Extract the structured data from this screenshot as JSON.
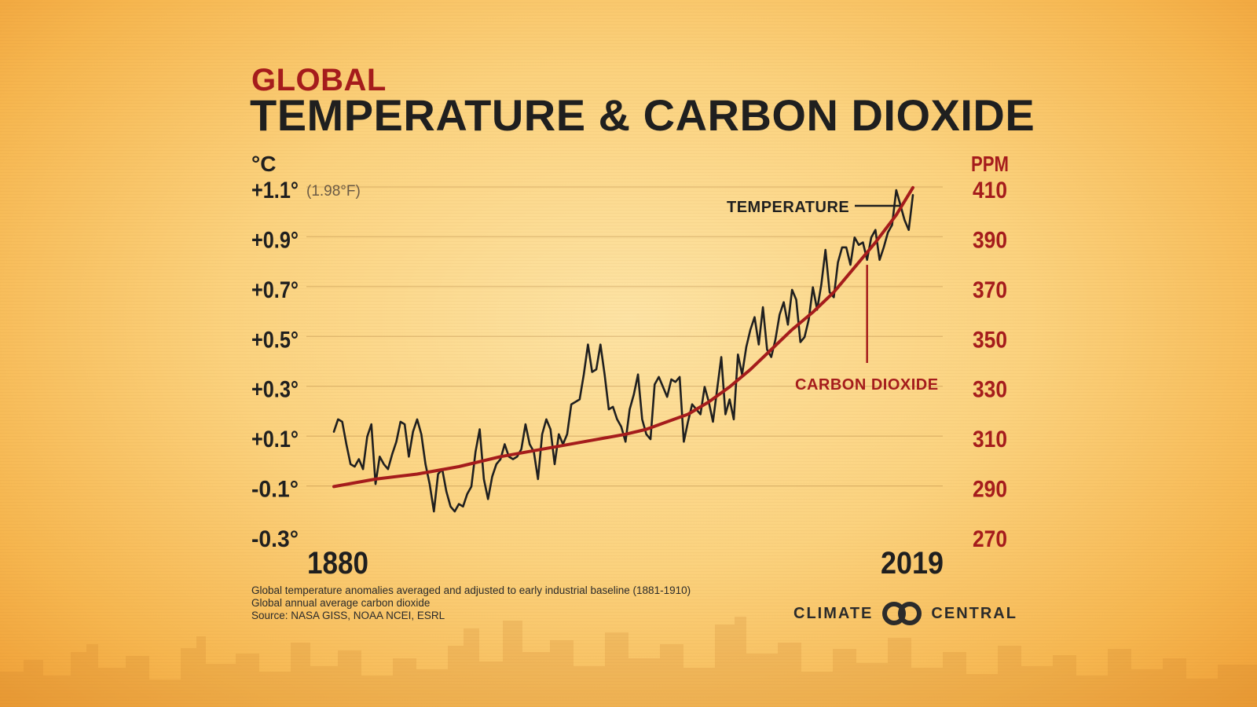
{
  "header": {
    "kicker": "GLOBAL",
    "title": "TEMPERATURE & CARBON DIOXIDE"
  },
  "chart_data": {
    "type": "line",
    "title": "GLOBAL TEMPERATURE & CARBON DIOXIDE",
    "x_range": [
      1880,
      2019
    ],
    "x_tick_labels": [
      "1880",
      "2019"
    ],
    "left_axis": {
      "unit": "°C",
      "ylim": [
        -0.3,
        1.1
      ],
      "ticks": [
        {
          "v": 1.1,
          "label": "+1.1°"
        },
        {
          "v": 0.9,
          "label": "+0.9°"
        },
        {
          "v": 0.7,
          "label": "+0.7°"
        },
        {
          "v": 0.5,
          "label": "+0.5°"
        },
        {
          "v": 0.3,
          "label": "+0.3°"
        },
        {
          "v": 0.1,
          "label": "+0.1°"
        },
        {
          "v": -0.1,
          "label": "-0.1°"
        },
        {
          "v": -0.3,
          "label": "-0.3°"
        }
      ],
      "top_note": "(1.98°F)"
    },
    "right_axis": {
      "unit": "PPM",
      "ylim": [
        270,
        410
      ],
      "ticks": [
        {
          "v": 410,
          "label": "410"
        },
        {
          "v": 390,
          "label": "390"
        },
        {
          "v": 370,
          "label": "370"
        },
        {
          "v": 350,
          "label": "350"
        },
        {
          "v": 330,
          "label": "330"
        },
        {
          "v": 310,
          "label": "310"
        },
        {
          "v": 290,
          "label": "290"
        },
        {
          "v": 270,
          "label": "270"
        }
      ]
    },
    "grid": true,
    "series": [
      {
        "name": "TEMPERATURE",
        "axis": "left",
        "color": "#1f1f1f",
        "x": [
          1880,
          1881,
          1882,
          1883,
          1884,
          1885,
          1886,
          1887,
          1888,
          1889,
          1890,
          1891,
          1892,
          1893,
          1894,
          1895,
          1896,
          1897,
          1898,
          1899,
          1900,
          1901,
          1902,
          1903,
          1904,
          1905,
          1906,
          1907,
          1908,
          1909,
          1910,
          1911,
          1912,
          1913,
          1914,
          1915,
          1916,
          1917,
          1918,
          1919,
          1920,
          1921,
          1922,
          1923,
          1924,
          1925,
          1926,
          1927,
          1928,
          1929,
          1930,
          1931,
          1932,
          1933,
          1934,
          1935,
          1936,
          1937,
          1938,
          1939,
          1940,
          1941,
          1942,
          1943,
          1944,
          1945,
          1946,
          1947,
          1948,
          1949,
          1950,
          1951,
          1952,
          1953,
          1954,
          1955,
          1956,
          1957,
          1958,
          1959,
          1960,
          1961,
          1962,
          1963,
          1964,
          1965,
          1966,
          1967,
          1968,
          1969,
          1970,
          1971,
          1972,
          1973,
          1974,
          1975,
          1976,
          1977,
          1978,
          1979,
          1980,
          1981,
          1982,
          1983,
          1984,
          1985,
          1986,
          1987,
          1988,
          1989,
          1990,
          1991,
          1992,
          1993,
          1994,
          1995,
          1996,
          1997,
          1998,
          1999,
          2000,
          2001,
          2002,
          2003,
          2004,
          2005,
          2006,
          2007,
          2008,
          2009,
          2010,
          2011,
          2012,
          2013,
          2014,
          2015,
          2016,
          2017,
          2018,
          2019
        ],
        "y": [
          0.13,
          0.18,
          0.17,
          0.08,
          0.0,
          -0.01,
          0.02,
          -0.02,
          0.11,
          0.16,
          -0.08,
          0.03,
          0.0,
          -0.02,
          0.04,
          0.09,
          0.17,
          0.16,
          0.03,
          0.13,
          0.18,
          0.12,
          0.0,
          -0.08,
          -0.19,
          -0.04,
          -0.02,
          -0.11,
          -0.17,
          -0.19,
          -0.16,
          -0.17,
          -0.12,
          -0.09,
          0.05,
          0.14,
          -0.06,
          -0.14,
          -0.05,
          0.0,
          0.02,
          0.08,
          0.03,
          0.02,
          0.03,
          0.06,
          0.16,
          0.08,
          0.05,
          -0.06,
          0.12,
          0.18,
          0.14,
          0.0,
          0.12,
          0.08,
          0.12,
          0.24,
          0.25,
          0.26,
          0.36,
          0.48,
          0.37,
          0.38,
          0.48,
          0.36,
          0.22,
          0.23,
          0.18,
          0.15,
          0.09,
          0.22,
          0.28,
          0.36,
          0.18,
          0.12,
          0.1,
          0.32,
          0.35,
          0.31,
          0.27,
          0.34,
          0.33,
          0.35,
          0.09,
          0.17,
          0.24,
          0.22,
          0.2,
          0.31,
          0.25,
          0.17,
          0.3,
          0.43,
          0.2,
          0.26,
          0.18,
          0.44,
          0.36,
          0.47,
          0.54,
          0.59,
          0.48,
          0.63,
          0.46,
          0.43,
          0.5,
          0.6,
          0.65,
          0.56,
          0.7,
          0.66,
          0.49,
          0.51,
          0.58,
          0.71,
          0.62,
          0.72,
          0.86,
          0.69,
          0.67,
          0.81,
          0.87,
          0.87,
          0.8,
          0.91,
          0.88,
          0.89,
          0.82,
          0.91,
          0.94,
          0.82,
          0.87,
          0.93,
          0.96,
          1.1,
          1.04,
          0.98,
          0.94,
          1.08
        ]
      },
      {
        "name": "CARBON DIOXIDE",
        "axis": "right",
        "color": "#a51c1c",
        "x": [
          1880,
          1890,
          1900,
          1910,
          1920,
          1930,
          1940,
          1950,
          1955,
          1960,
          1965,
          1970,
          1975,
          1980,
          1985,
          1990,
          1995,
          2000,
          2005,
          2010,
          2015,
          2019
        ],
        "y": [
          291,
          294,
          296,
          299,
          303,
          306,
          309,
          312,
          314,
          317,
          320,
          325,
          331,
          338,
          346,
          354,
          361,
          369,
          379,
          389,
          400,
          411
        ]
      }
    ],
    "annotations": [
      "TEMPERATURE",
      "CARBON DIOXIDE"
    ]
  },
  "notes": [
    "Global temperature anomalies averaged and adjusted to early industrial baseline (1881-1910)",
    "Global annual average carbon dioxide",
    "Source: NASA GISS, NOAA NCEI, ESRL"
  ],
  "brand": {
    "left": "CLIMATE",
    "right": "CENTRAL"
  },
  "colors": {
    "accent_red": "#a51c1c",
    "text_dark": "#1f1f1f",
    "background": "#fbd27e"
  }
}
